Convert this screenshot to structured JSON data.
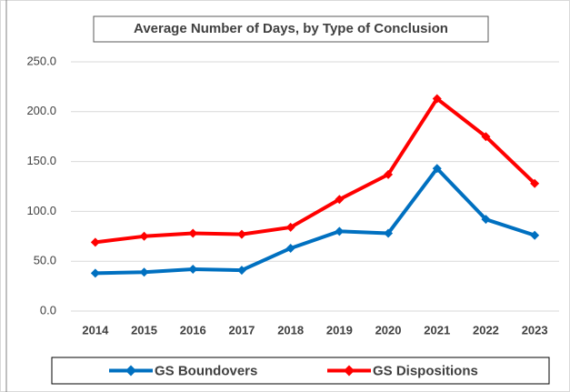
{
  "chart_data": {
    "type": "line",
    "title": "Average Number of Days, by Type of Conclusion",
    "categories": [
      "2014",
      "2015",
      "2016",
      "2017",
      "2018",
      "2019",
      "2020",
      "2021",
      "2022",
      "2023"
    ],
    "series": [
      {
        "name": "GS Boundovers",
        "color": "#0070c0",
        "values": [
          38,
          39,
          42,
          41,
          63,
          80,
          78,
          143,
          92,
          76
        ]
      },
      {
        "name": "GS Dispositions",
        "color": "#ff0000",
        "values": [
          69,
          75,
          78,
          77,
          84,
          112,
          137,
          213,
          175,
          128
        ]
      }
    ],
    "ylim": [
      0,
      250
    ],
    "yticks": [
      {
        "value": 0,
        "label": "0.0"
      },
      {
        "value": 50,
        "label": "50.0"
      },
      {
        "value": 100,
        "label": "100.0"
      },
      {
        "value": 150,
        "label": "150.0"
      },
      {
        "value": 200,
        "label": "200.0"
      },
      {
        "value": 250,
        "label": "250.0"
      }
    ],
    "grid": true,
    "legend": "bottom"
  }
}
